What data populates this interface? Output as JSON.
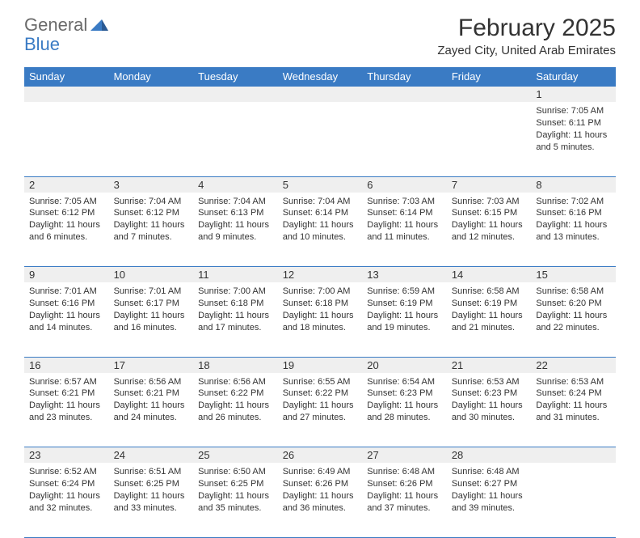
{
  "logo": {
    "general": "General",
    "blue": "Blue"
  },
  "title": {
    "month": "February 2025",
    "location": "Zayed City, United Arab Emirates"
  },
  "colors": {
    "header_blue": "#3a7bc4",
    "logo_gray": "#6a6a6a",
    "logo_blue": "#3a7bc4",
    "text": "#333333",
    "row_bg": "#efefef",
    "bg": "#ffffff"
  },
  "day_headers": [
    "Sunday",
    "Monday",
    "Tuesday",
    "Wednesday",
    "Thursday",
    "Friday",
    "Saturday"
  ],
  "weeks": [
    {
      "days": [
        {
          "num": "",
          "sunrise": "",
          "sunset": "",
          "daylight1": "",
          "daylight2": ""
        },
        {
          "num": "",
          "sunrise": "",
          "sunset": "",
          "daylight1": "",
          "daylight2": ""
        },
        {
          "num": "",
          "sunrise": "",
          "sunset": "",
          "daylight1": "",
          "daylight2": ""
        },
        {
          "num": "",
          "sunrise": "",
          "sunset": "",
          "daylight1": "",
          "daylight2": ""
        },
        {
          "num": "",
          "sunrise": "",
          "sunset": "",
          "daylight1": "",
          "daylight2": ""
        },
        {
          "num": "",
          "sunrise": "",
          "sunset": "",
          "daylight1": "",
          "daylight2": ""
        },
        {
          "num": "1",
          "sunrise": "Sunrise: 7:05 AM",
          "sunset": "Sunset: 6:11 PM",
          "daylight1": "Daylight: 11 hours",
          "daylight2": "and 5 minutes."
        }
      ]
    },
    {
      "days": [
        {
          "num": "2",
          "sunrise": "Sunrise: 7:05 AM",
          "sunset": "Sunset: 6:12 PM",
          "daylight1": "Daylight: 11 hours",
          "daylight2": "and 6 minutes."
        },
        {
          "num": "3",
          "sunrise": "Sunrise: 7:04 AM",
          "sunset": "Sunset: 6:12 PM",
          "daylight1": "Daylight: 11 hours",
          "daylight2": "and 7 minutes."
        },
        {
          "num": "4",
          "sunrise": "Sunrise: 7:04 AM",
          "sunset": "Sunset: 6:13 PM",
          "daylight1": "Daylight: 11 hours",
          "daylight2": "and 9 minutes."
        },
        {
          "num": "5",
          "sunrise": "Sunrise: 7:04 AM",
          "sunset": "Sunset: 6:14 PM",
          "daylight1": "Daylight: 11 hours",
          "daylight2": "and 10 minutes."
        },
        {
          "num": "6",
          "sunrise": "Sunrise: 7:03 AM",
          "sunset": "Sunset: 6:14 PM",
          "daylight1": "Daylight: 11 hours",
          "daylight2": "and 11 minutes."
        },
        {
          "num": "7",
          "sunrise": "Sunrise: 7:03 AM",
          "sunset": "Sunset: 6:15 PM",
          "daylight1": "Daylight: 11 hours",
          "daylight2": "and 12 minutes."
        },
        {
          "num": "8",
          "sunrise": "Sunrise: 7:02 AM",
          "sunset": "Sunset: 6:16 PM",
          "daylight1": "Daylight: 11 hours",
          "daylight2": "and 13 minutes."
        }
      ]
    },
    {
      "days": [
        {
          "num": "9",
          "sunrise": "Sunrise: 7:01 AM",
          "sunset": "Sunset: 6:16 PM",
          "daylight1": "Daylight: 11 hours",
          "daylight2": "and 14 minutes."
        },
        {
          "num": "10",
          "sunrise": "Sunrise: 7:01 AM",
          "sunset": "Sunset: 6:17 PM",
          "daylight1": "Daylight: 11 hours",
          "daylight2": "and 16 minutes."
        },
        {
          "num": "11",
          "sunrise": "Sunrise: 7:00 AM",
          "sunset": "Sunset: 6:18 PM",
          "daylight1": "Daylight: 11 hours",
          "daylight2": "and 17 minutes."
        },
        {
          "num": "12",
          "sunrise": "Sunrise: 7:00 AM",
          "sunset": "Sunset: 6:18 PM",
          "daylight1": "Daylight: 11 hours",
          "daylight2": "and 18 minutes."
        },
        {
          "num": "13",
          "sunrise": "Sunrise: 6:59 AM",
          "sunset": "Sunset: 6:19 PM",
          "daylight1": "Daylight: 11 hours",
          "daylight2": "and 19 minutes."
        },
        {
          "num": "14",
          "sunrise": "Sunrise: 6:58 AM",
          "sunset": "Sunset: 6:19 PM",
          "daylight1": "Daylight: 11 hours",
          "daylight2": "and 21 minutes."
        },
        {
          "num": "15",
          "sunrise": "Sunrise: 6:58 AM",
          "sunset": "Sunset: 6:20 PM",
          "daylight1": "Daylight: 11 hours",
          "daylight2": "and 22 minutes."
        }
      ]
    },
    {
      "days": [
        {
          "num": "16",
          "sunrise": "Sunrise: 6:57 AM",
          "sunset": "Sunset: 6:21 PM",
          "daylight1": "Daylight: 11 hours",
          "daylight2": "and 23 minutes."
        },
        {
          "num": "17",
          "sunrise": "Sunrise: 6:56 AM",
          "sunset": "Sunset: 6:21 PM",
          "daylight1": "Daylight: 11 hours",
          "daylight2": "and 24 minutes."
        },
        {
          "num": "18",
          "sunrise": "Sunrise: 6:56 AM",
          "sunset": "Sunset: 6:22 PM",
          "daylight1": "Daylight: 11 hours",
          "daylight2": "and 26 minutes."
        },
        {
          "num": "19",
          "sunrise": "Sunrise: 6:55 AM",
          "sunset": "Sunset: 6:22 PM",
          "daylight1": "Daylight: 11 hours",
          "daylight2": "and 27 minutes."
        },
        {
          "num": "20",
          "sunrise": "Sunrise: 6:54 AM",
          "sunset": "Sunset: 6:23 PM",
          "daylight1": "Daylight: 11 hours",
          "daylight2": "and 28 minutes."
        },
        {
          "num": "21",
          "sunrise": "Sunrise: 6:53 AM",
          "sunset": "Sunset: 6:23 PM",
          "daylight1": "Daylight: 11 hours",
          "daylight2": "and 30 minutes."
        },
        {
          "num": "22",
          "sunrise": "Sunrise: 6:53 AM",
          "sunset": "Sunset: 6:24 PM",
          "daylight1": "Daylight: 11 hours",
          "daylight2": "and 31 minutes."
        }
      ]
    },
    {
      "days": [
        {
          "num": "23",
          "sunrise": "Sunrise: 6:52 AM",
          "sunset": "Sunset: 6:24 PM",
          "daylight1": "Daylight: 11 hours",
          "daylight2": "and 32 minutes."
        },
        {
          "num": "24",
          "sunrise": "Sunrise: 6:51 AM",
          "sunset": "Sunset: 6:25 PM",
          "daylight1": "Daylight: 11 hours",
          "daylight2": "and 33 minutes."
        },
        {
          "num": "25",
          "sunrise": "Sunrise: 6:50 AM",
          "sunset": "Sunset: 6:25 PM",
          "daylight1": "Daylight: 11 hours",
          "daylight2": "and 35 minutes."
        },
        {
          "num": "26",
          "sunrise": "Sunrise: 6:49 AM",
          "sunset": "Sunset: 6:26 PM",
          "daylight1": "Daylight: 11 hours",
          "daylight2": "and 36 minutes."
        },
        {
          "num": "27",
          "sunrise": "Sunrise: 6:48 AM",
          "sunset": "Sunset: 6:26 PM",
          "daylight1": "Daylight: 11 hours",
          "daylight2": "and 37 minutes."
        },
        {
          "num": "28",
          "sunrise": "Sunrise: 6:48 AM",
          "sunset": "Sunset: 6:27 PM",
          "daylight1": "Daylight: 11 hours",
          "daylight2": "and 39 minutes."
        },
        {
          "num": "",
          "sunrise": "",
          "sunset": "",
          "daylight1": "",
          "daylight2": ""
        }
      ]
    }
  ]
}
